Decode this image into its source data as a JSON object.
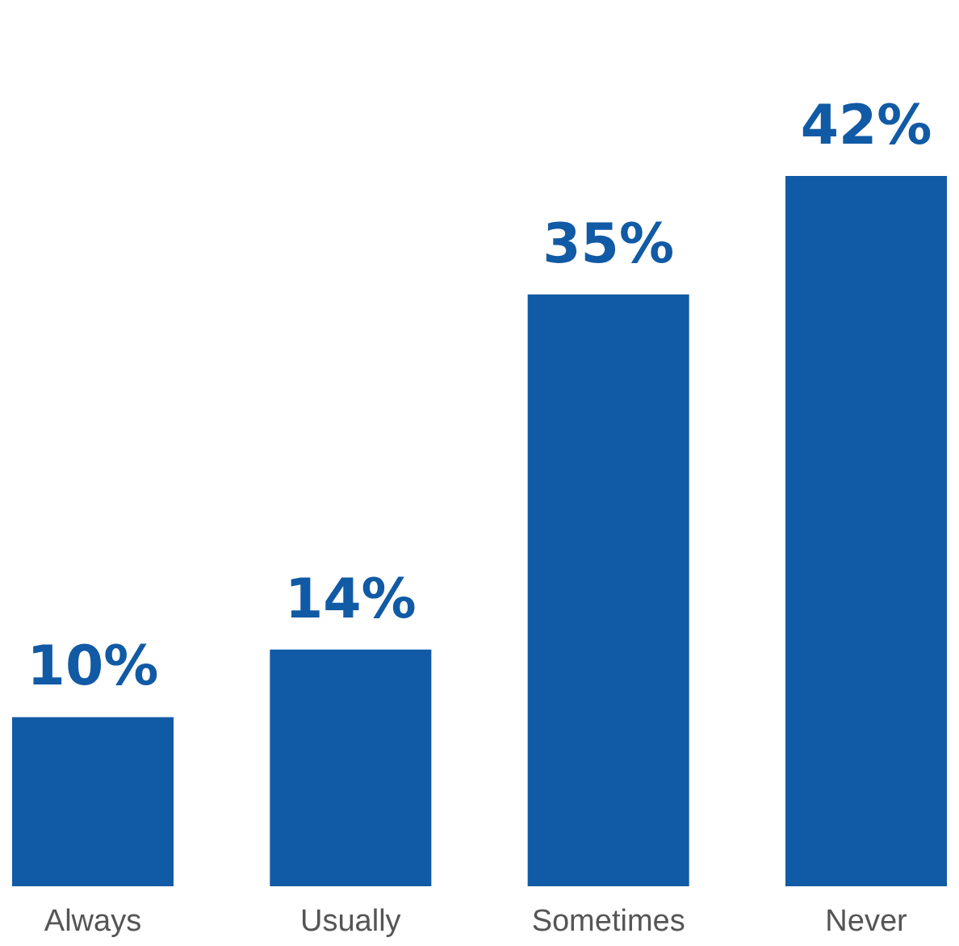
{
  "chart_data": {
    "type": "bar",
    "categories": [
      "Always",
      "Usually",
      "Sometimes",
      "Never"
    ],
    "values": [
      10,
      14,
      35,
      42
    ],
    "value_labels": [
      "10%",
      "14%",
      "35%",
      "42%"
    ],
    "color": "#115aa5"
  }
}
